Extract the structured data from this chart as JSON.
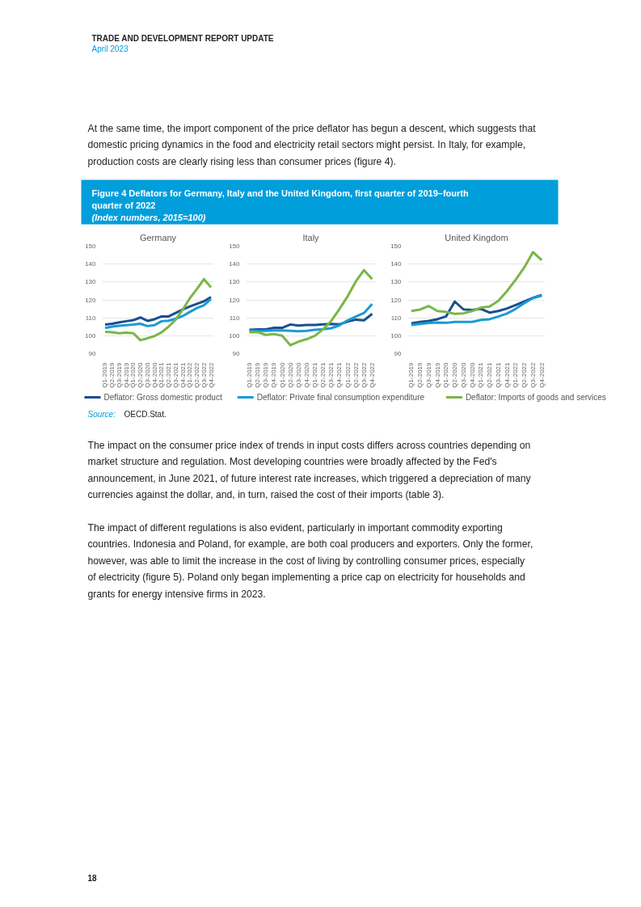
{
  "chart_data": [
    {
      "type": "line",
      "title": "Germany",
      "categories": [
        "Q1-2019",
        "Q2-2019",
        "Q3-2019",
        "Q4-2019",
        "Q1-2020",
        "Q2-2020",
        "Q3-2020",
        "Q4-2020",
        "Q1-2021",
        "Q2-2021",
        "Q3-2021",
        "Q4-2021",
        "Q1-2022",
        "Q2-2022",
        "Q3-2022",
        "Q4-2022"
      ],
      "ylim": [
        90,
        150
      ],
      "yticks": [
        90,
        100,
        110,
        120,
        130,
        140,
        150
      ],
      "grid": "y",
      "legend": "bottom",
      "series": [
        {
          "name": "Deflator: Gross domestic product",
          "color": "#1b4f8f",
          "values": [
            106.2,
            106.7,
            107.5,
            108.1,
            108.7,
            110.2,
            108.3,
            109.2,
            110.8,
            110.8,
            112.7,
            114.6,
            116.3,
            117.8,
            119.2,
            121.6
          ]
        },
        {
          "name": "Deflator: Private final consumption expenditure",
          "color": "#1a9ad6",
          "values": [
            104.3,
            105.1,
            105.6,
            105.9,
            106.2,
            106.7,
            105.4,
            105.9,
            108.1,
            108.4,
            109.5,
            111,
            113.3,
            115.4,
            117,
            120.5
          ]
        },
        {
          "name": "Deflator: Imports of goods and services",
          "color": "#7ab648",
          "values": [
            102.2,
            102,
            101.4,
            101.7,
            101.4,
            97.5,
            98.6,
            99.8,
            101.9,
            105.1,
            109,
            114.6,
            120.9,
            126,
            131.6,
            127
          ]
        }
      ]
    },
    {
      "type": "line",
      "title": "Italy",
      "categories": [
        "Q1-2019",
        "Q2-2019",
        "Q3-2019",
        "Q4-2019",
        "Q1-2020",
        "Q2-2020",
        "Q3-2020",
        "Q4-2020",
        "Q1-2021",
        "Q2-2021",
        "Q3-2021",
        "Q4-2021",
        "Q1-2022",
        "Q2-2022",
        "Q3-2022",
        "Q4-2022"
      ],
      "ylim": [
        90,
        150
      ],
      "yticks": [
        90,
        100,
        110,
        120,
        130,
        140,
        150
      ],
      "grid": "y",
      "series": [
        {
          "color": "#1b4f8f",
          "values": [
            103.3,
            103.5,
            103.5,
            104.4,
            104.4,
            106.3,
            105.7,
            106,
            106,
            106.3,
            106.6,
            106.4,
            107.9,
            109,
            108.6,
            112.2
          ]
        },
        {
          "color": "#1a9ad6",
          "values": [
            102.7,
            102.7,
            102.8,
            103,
            103,
            102.8,
            102.5,
            102.7,
            103.3,
            103.6,
            104.2,
            105.8,
            108.6,
            110.7,
            112.7,
            117.7
          ]
        },
        {
          "color": "#7ab648",
          "values": [
            102,
            102,
            100.5,
            101,
            100,
            94.7,
            96.7,
            98.1,
            100,
            103.6,
            108.3,
            114.9,
            122,
            130.3,
            136.6,
            131.6
          ]
        }
      ]
    },
    {
      "type": "line",
      "title": "United Kingdom",
      "categories": [
        "Q1-2019",
        "Q2-2019",
        "Q3-2019",
        "Q4-2019",
        "Q1-2020",
        "Q2-2020",
        "Q3-2020",
        "Q4-2020",
        "Q1-2021",
        "Q2-2021",
        "Q3-2021",
        "Q4-2021",
        "Q1-2022",
        "Q2-2022",
        "Q3-2022",
        "Q4-2022"
      ],
      "ylim": [
        90,
        150
      ],
      "yticks": [
        90,
        100,
        110,
        120,
        130,
        140,
        150
      ],
      "grid": "y",
      "series": [
        {
          "color": "#1b4f8f",
          "values": [
            106.9,
            107.7,
            108.3,
            109.2,
            110.8,
            119.1,
            114.7,
            114.4,
            115,
            112.9,
            113.8,
            115.2,
            117.1,
            119.1,
            121.2,
            122.7
          ]
        },
        {
          "color": "#1a9ad6",
          "values": [
            106,
            106.6,
            107.1,
            107.4,
            107.2,
            107.7,
            107.7,
            107.7,
            108.8,
            109.2,
            110.7,
            112.4,
            115,
            118.2,
            121,
            122.3
          ]
        },
        {
          "color": "#7ab648",
          "values": [
            113.8,
            114.6,
            116.6,
            113.8,
            113.3,
            112.2,
            112.5,
            113.8,
            115.7,
            116.3,
            119.4,
            124.9,
            131.2,
            138.2,
            146.7,
            142.2
          ]
        }
      ]
    },
    {
      "type": "other",
      "annotations": [
        "TRADE AND DEVELOPMENT REPORT UPDATE",
        "April 2023",
        "At the same time, the import component of the price deflator has begun a descent, which suggests that domestic pricing dynamics in the food and electricity retail sectors might persist. In Italy, for example, production costs are clearly rising less than consumer prices (figure 4).",
        "Figure 4  Deflators for Germany, Italy and the United Kingdom, first quarter of 2019–fourth quarter of 2022",
        "(Index numbers, 2015=100)",
        "Source: OECD.Stat.",
        "The impact on the consumer price index of trends in input costs differs across countries depending on market structure and regulation. Most developing countries were broadly affected by the Fed's announcement, in June 2021, of future interest rate increases, which triggered a depreciation of many currencies against the dollar, and, in turn, raised the cost of their imports (table 3).",
        "The impact of different regulations is also evident, particularly in important commodity exporting countries. Indonesia and Poland, for example, are both coal producers and exporters. Only the former, however, was able to limit the increase in the cost of living by controlling consumer prices, especially of electricity (figure 5). Poland only began implementing a price cap on electricity for households and grants for energy intensive firms in 2023.",
        "18"
      ]
    }
  ]
}
